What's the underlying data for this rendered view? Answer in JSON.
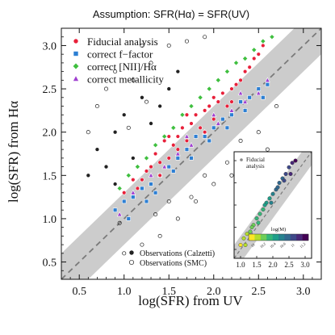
{
  "chart_data": [
    {
      "type": "scatter",
      "title": "Assumption: SFR(Hα) = SFR(UV)",
      "xlabel": "log(SFR) from UV",
      "ylabel": "log(SFR) from Hα",
      "xlim": [
        0.3,
        3.2
      ],
      "ylim": [
        0.3,
        3.2
      ],
      "xticks": [
        "0.5",
        "1.0",
        "1.5",
        "2.0",
        "2.5",
        "3.0"
      ],
      "yticks": [
        "0.5",
        "1.0",
        "1.5",
        "2.0",
        "2.5",
        "3.0"
      ],
      "grid": false,
      "legend_position": "top-left",
      "series": [
        {
          "name": "Fiducial analysis",
          "marker": "circle",
          "color": "#e8203a",
          "points": [
            [
              1.0,
              1.3
            ],
            [
              1.1,
              1.45
            ],
            [
              1.2,
              1.45
            ],
            [
              1.3,
              1.6
            ],
            [
              1.35,
              1.75
            ],
            [
              1.4,
              1.65
            ],
            [
              1.45,
              1.9
            ],
            [
              1.5,
              1.7
            ],
            [
              1.55,
              1.85
            ],
            [
              1.6,
              1.95
            ],
            [
              1.65,
              2.05
            ],
            [
              1.7,
              1.9
            ],
            [
              1.75,
              2.1
            ],
            [
              1.8,
              2.2
            ],
            [
              1.85,
              2.05
            ],
            [
              1.9,
              2.25
            ],
            [
              1.95,
              2.3
            ],
            [
              2.0,
              2.15
            ],
            [
              2.05,
              2.35
            ],
            [
              2.1,
              2.45
            ],
            [
              2.15,
              2.3
            ],
            [
              2.2,
              2.5
            ],
            [
              2.25,
              2.55
            ],
            [
              2.3,
              2.6
            ],
            [
              2.35,
              2.7
            ],
            [
              2.4,
              2.75
            ],
            [
              2.45,
              2.85
            ],
            [
              2.5,
              2.9
            ],
            [
              2.55,
              3.0
            ],
            [
              1.25,
              1.55
            ],
            [
              1.5,
              1.95
            ],
            [
              1.6,
              1.8
            ],
            [
              1.7,
              2.2
            ],
            [
              1.9,
              2.0
            ],
            [
              2.0,
              2.4
            ],
            [
              2.2,
              2.35
            ],
            [
              1.4,
              1.5
            ],
            [
              1.15,
              1.35
            ]
          ]
        },
        {
          "name": "correct f−factor",
          "marker": "square",
          "color": "#2d7fd3",
          "points": [
            [
              0.9,
              1.1
            ],
            [
              1.0,
              1.2
            ],
            [
              1.1,
              1.25
            ],
            [
              1.2,
              1.35
            ],
            [
              1.3,
              1.4
            ],
            [
              1.4,
              1.5
            ],
            [
              1.5,
              1.6
            ],
            [
              1.6,
              1.7
            ],
            [
              1.7,
              1.8
            ],
            [
              1.8,
              1.95
            ],
            [
              1.9,
              1.95
            ],
            [
              2.0,
              2.05
            ],
            [
              2.1,
              2.15
            ],
            [
              2.2,
              2.2
            ],
            [
              2.3,
              2.35
            ],
            [
              2.4,
              2.4
            ],
            [
              2.5,
              2.5
            ],
            [
              2.6,
              2.55
            ],
            [
              1.35,
              1.3
            ],
            [
              1.55,
              1.55
            ],
            [
              1.75,
              1.7
            ],
            [
              1.95,
              1.9
            ],
            [
              2.15,
              2.05
            ],
            [
              2.35,
              2.25
            ],
            [
              2.55,
              2.4
            ],
            [
              1.05,
              1.0
            ],
            [
              1.25,
              1.2
            ]
          ]
        },
        {
          "name": "correct [NII]/Hα",
          "marker": "diamond",
          "color": "#3fbf3f",
          "points": [
            [
              0.95,
              1.35
            ],
            [
              1.05,
              1.5
            ],
            [
              1.15,
              1.6
            ],
            [
              1.25,
              1.7
            ],
            [
              1.35,
              1.85
            ],
            [
              1.45,
              1.95
            ],
            [
              1.55,
              2.05
            ],
            [
              1.65,
              2.2
            ],
            [
              1.75,
              2.3
            ],
            [
              1.85,
              2.4
            ],
            [
              1.95,
              2.5
            ],
            [
              2.05,
              2.6
            ],
            [
              2.15,
              2.7
            ],
            [
              2.25,
              2.8
            ],
            [
              2.35,
              2.85
            ],
            [
              2.45,
              2.95
            ],
            [
              2.55,
              3.05
            ],
            [
              2.65,
              3.1
            ]
          ]
        },
        {
          "name": "correct metallicity",
          "marker": "triangle",
          "color": "#a040d0",
          "points": [
            [
              0.95,
              1.05
            ],
            [
              1.1,
              1.3
            ],
            [
              1.3,
              1.5
            ],
            [
              1.45,
              1.6
            ],
            [
              1.6,
              1.75
            ],
            [
              1.75,
              1.85
            ],
            [
              1.9,
              2.0
            ],
            [
              2.05,
              2.1
            ],
            [
              2.2,
              2.25
            ],
            [
              2.35,
              2.35
            ],
            [
              2.5,
              2.45
            ],
            [
              2.6,
              2.6
            ],
            [
              1.7,
              1.95
            ],
            [
              2.0,
              2.2
            ],
            [
              2.3,
              2.45
            ]
          ]
        },
        {
          "name": "Observations (Calzetti)",
          "marker": "filled-dot",
          "color": "#222222",
          "points": [
            [
              0.7,
              1.8
            ],
            [
              0.9,
              2.0
            ],
            [
              1.2,
              2.4
            ],
            [
              1.1,
              1.7
            ],
            [
              1.3,
              2.1
            ],
            [
              1.5,
              2.5
            ],
            [
              0.6,
              1.5
            ],
            [
              0.8,
              1.6
            ],
            [
              1.0,
              2.2
            ],
            [
              1.4,
              2.3
            ],
            [
              1.6,
              2.7
            ],
            [
              0.9,
              1.4
            ]
          ]
        },
        {
          "name": "Observations (SMC)",
          "marker": "open-circle",
          "color": "#222222",
          "points": [
            [
              0.6,
              2.0
            ],
            [
              0.7,
              2.3
            ],
            [
              0.9,
              2.7
            ],
            [
              1.1,
              2.6
            ],
            [
              1.3,
              2.8
            ],
            [
              1.5,
              3.0
            ],
            [
              1.7,
              3.05
            ],
            [
              1.9,
              3.1
            ],
            [
              1.0,
              0.6
            ],
            [
              1.2,
              0.7
            ],
            [
              1.4,
              0.8
            ],
            [
              1.6,
              1.0
            ],
            [
              1.8,
              1.2
            ],
            [
              2.0,
              1.4
            ],
            [
              2.2,
              1.5
            ],
            [
              2.4,
              1.7
            ],
            [
              2.6,
              1.8
            ],
            [
              1.5,
              1.2
            ],
            [
              1.9,
              1.5
            ],
            [
              2.3,
              1.9
            ],
            [
              2.7,
              2.3
            ],
            [
              0.8,
              2.5
            ],
            [
              1.2,
              3.0
            ],
            [
              1.05,
              2.05
            ],
            [
              1.25,
              2.35
            ],
            [
              0.95,
              0.95
            ],
            [
              1.35,
              1.05
            ],
            [
              1.75,
              1.25
            ],
            [
              2.15,
              1.65
            ],
            [
              2.5,
              2.0
            ]
          ]
        }
      ],
      "reference_line": {
        "label": "",
        "slope": 1,
        "intercept": 0,
        "style": "dashed",
        "color": "#7a7a7a"
      },
      "scatter_band": {
        "halfwidth": 0.3,
        "color": "#cccccc"
      }
    },
    {
      "type": "scatter",
      "title": "",
      "annotation": "Fiducial analysis",
      "xticks": [
        "1.0",
        "1.5",
        "2.0",
        "2.5",
        "3.0"
      ],
      "xlim": [
        0.8,
        3.2
      ],
      "ylim": [
        0.8,
        3.2
      ],
      "colorbar": {
        "label": "log(M)",
        "ticks": [
          "10",
          "10.2",
          "10.4",
          "10.6",
          "11",
          "11.2"
        ],
        "colormap": [
          "#fde725",
          "#b5de2b",
          "#6ece58",
          "#35b779",
          "#1f9e89",
          "#26828e",
          "#31688e",
          "#3e4989",
          "#482878",
          "#440154"
        ]
      },
      "points": [
        [
          1.0,
          1.1
        ],
        [
          1.1,
          1.25
        ],
        [
          1.2,
          1.35
        ],
        [
          1.3,
          1.4
        ],
        [
          1.4,
          1.55
        ],
        [
          1.5,
          1.7
        ],
        [
          1.6,
          1.8
        ],
        [
          1.7,
          1.9
        ],
        [
          1.8,
          2.05
        ],
        [
          1.9,
          2.15
        ],
        [
          2.0,
          2.25
        ],
        [
          2.1,
          2.35
        ],
        [
          2.2,
          2.5
        ],
        [
          2.3,
          2.6
        ],
        [
          2.4,
          2.7
        ],
        [
          2.5,
          2.85
        ],
        [
          2.6,
          2.95
        ],
        [
          1.15,
          1.1
        ],
        [
          1.35,
          1.5
        ],
        [
          1.55,
          1.6
        ],
        [
          1.75,
          2.0
        ],
        [
          1.95,
          2.05
        ],
        [
          2.15,
          2.4
        ],
        [
          2.35,
          2.55
        ],
        [
          2.55,
          2.7
        ],
        [
          2.7,
          3.0
        ]
      ]
    }
  ]
}
